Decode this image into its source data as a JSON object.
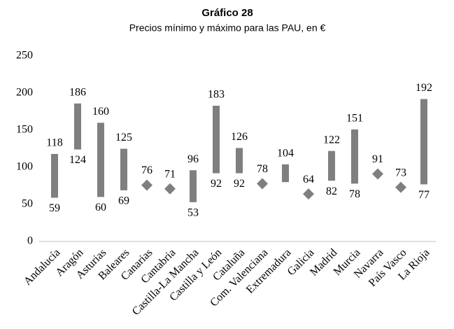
{
  "chart_data": {
    "type": "floating-bar",
    "title": "Gráfico 28",
    "subtitle": "Precios mínimo y máximo para las PAU, en €",
    "categories": [
      "Andalucía",
      "Aragón",
      "Asturias",
      "Baleares",
      "Canarias",
      "Cantabria",
      "Castilla-La Mancha",
      "Castilla y León",
      "Cataluña",
      "Com. Valenciana",
      "Extremadura",
      "Galicia",
      "Madrid",
      "Murcia",
      "Navarra",
      "País Vasco",
      "La Rioja"
    ],
    "series": [
      {
        "values": [
          118,
          186,
          160,
          125,
          76,
          71,
          96,
          183,
          126,
          78,
          104,
          64,
          122,
          151,
          91,
          73,
          192
        ],
        "color": "#7f7f7f",
        "value_labels": [
          "118",
          "186",
          "160",
          "125",
          "76",
          "71",
          "96",
          "183",
          "126",
          "78",
          "104",
          "64",
          "122",
          "151",
          "91",
          "73",
          "192"
        ]
      },
      {
        "values": [
          59,
          124,
          60,
          69,
          76,
          71,
          53,
          92,
          92,
          78,
          80,
          64,
          82,
          78,
          91,
          73,
          77
        ],
        "color": "#7f7f7f",
        "value_labels": [
          "59",
          "124",
          "60",
          "69",
          null,
          null,
          "53",
          "92",
          "92",
          null,
          null,
          null,
          "82",
          "78",
          null,
          null,
          "77"
        ]
      }
    ],
    "ylim": [
      0,
      250
    ],
    "yticks": [
      0,
      50,
      100,
      150,
      200,
      250
    ],
    "grid": false
  }
}
